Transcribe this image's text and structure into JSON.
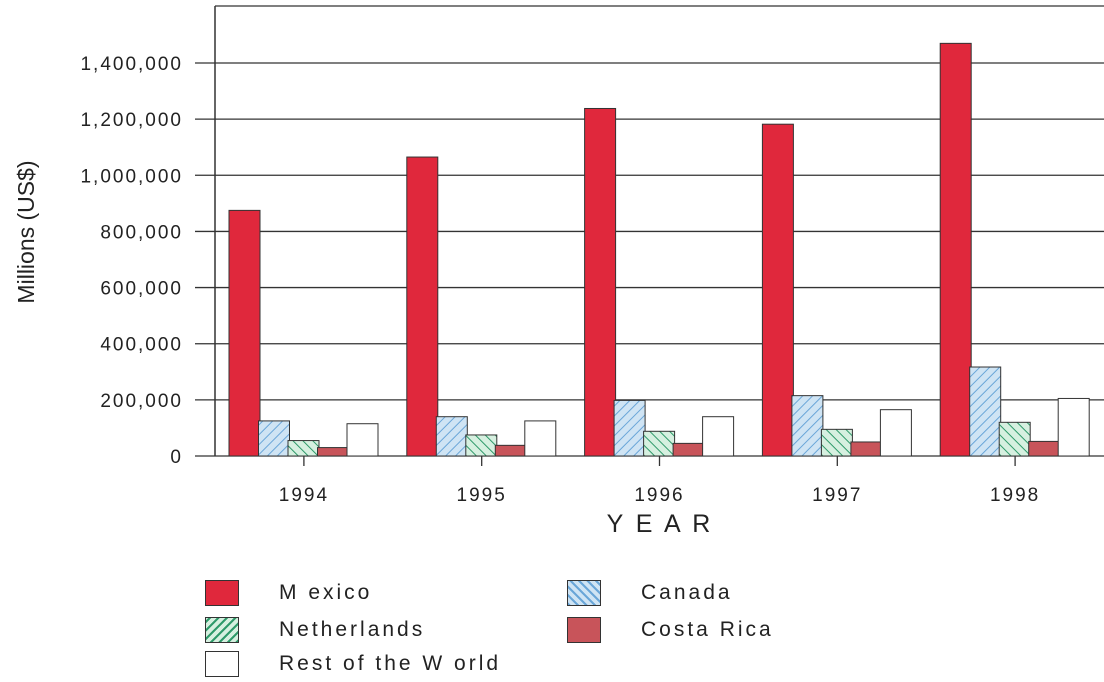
{
  "chart_data": {
    "type": "bar",
    "categories": [
      "1994",
      "1995",
      "1996",
      "1997",
      "1998"
    ],
    "series": [
      {
        "name": "Mexico",
        "values": [
          875000,
          1065000,
          1238000,
          1182000,
          1470000
        ],
        "color": "#e0283c",
        "pattern": "solid"
      },
      {
        "name": "Canada",
        "values": [
          125000,
          140000,
          198000,
          215000,
          317000
        ],
        "color": "#bcd8ee",
        "pattern": "hatch-blue"
      },
      {
        "name": "Netherlands",
        "values": [
          55000,
          75000,
          88000,
          95000,
          120000
        ],
        "color": "#bfe3cf",
        "pattern": "hatch-green"
      },
      {
        "name": "Costa Rica",
        "values": [
          30000,
          38000,
          45000,
          50000,
          52000
        ],
        "color": "#c8545a",
        "pattern": "solid"
      },
      {
        "name": "Rest of the W orld",
        "values": [
          115000,
          125000,
          140000,
          165000,
          205000
        ],
        "color": "#ffffff",
        "pattern": "solid"
      }
    ],
    "yticks": [
      "0",
      "200,000",
      "400,000",
      "600,000",
      "800,000",
      "1,000,000",
      "1,200,000",
      "1,400,000"
    ],
    "ylim": [
      0,
      1600000
    ],
    "xlabel": "Y E A R",
    "ylabel": "Millions (US$)",
    "grid": true,
    "legend_position": "bottom"
  },
  "legend": {
    "mexico": "M exico",
    "canada": "Canada",
    "netherlands": "Netherlands",
    "costa_rica": "Costa Rica",
    "rest": "Rest of the W orld"
  }
}
